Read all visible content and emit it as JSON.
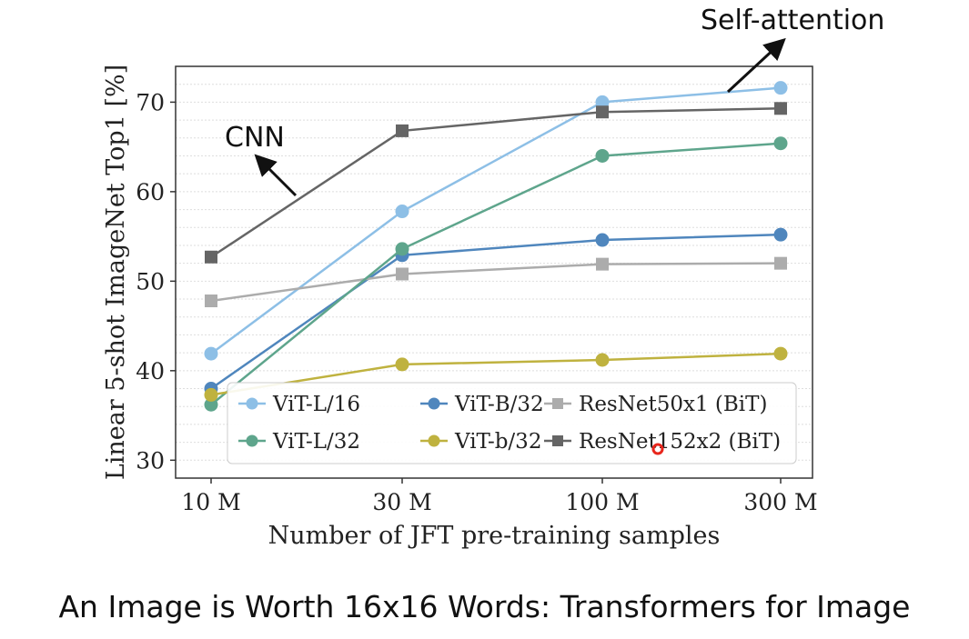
{
  "chart_data": {
    "type": "line",
    "x": [
      "10 M",
      "30 M",
      "100 M",
      "300 M"
    ],
    "xlabel": "Number of JFT pre-training samples",
    "ylabel": "Linear 5-shot ImageNet Top1 [%]",
    "ylim": [
      28,
      74
    ],
    "yticks": [
      30,
      40,
      50,
      60,
      70
    ],
    "grid": "horizontal dotted",
    "legend_position": "lower-right",
    "series": [
      {
        "name": "ViT-L/16",
        "color": "#8dbfe6",
        "marker": "circle",
        "values": [
          41.9,
          57.8,
          70.0,
          71.6
        ]
      },
      {
        "name": "ViT-B/32",
        "color": "#4f86bd",
        "marker": "circle",
        "values": [
          38.0,
          52.9,
          54.6,
          55.2
        ]
      },
      {
        "name": "ResNet50x1 (BiT)",
        "color": "#acacac",
        "marker": "square",
        "values": [
          47.8,
          50.8,
          51.9,
          52.0
        ]
      },
      {
        "name": "ViT-L/32",
        "color": "#5ea58c",
        "marker": "circle",
        "values": [
          36.2,
          53.6,
          64.0,
          65.4
        ]
      },
      {
        "name": "ViT-b/32",
        "color": "#bfb23f",
        "marker": "circle",
        "values": [
          37.3,
          40.7,
          41.2,
          41.9
        ]
      },
      {
        "name": "ResNet152x2 (BiT)",
        "color": "#656565",
        "marker": "square",
        "values": [
          52.7,
          66.8,
          68.9,
          69.3
        ]
      }
    ],
    "annotations": [
      {
        "text": "CNN",
        "points_to": "ResNet152x2 (BiT)"
      },
      {
        "text": "Self-attention",
        "points_to": "ViT-L/16"
      }
    ]
  },
  "caption": "An Image is Worth 16x16 Words: Transformers for Image"
}
